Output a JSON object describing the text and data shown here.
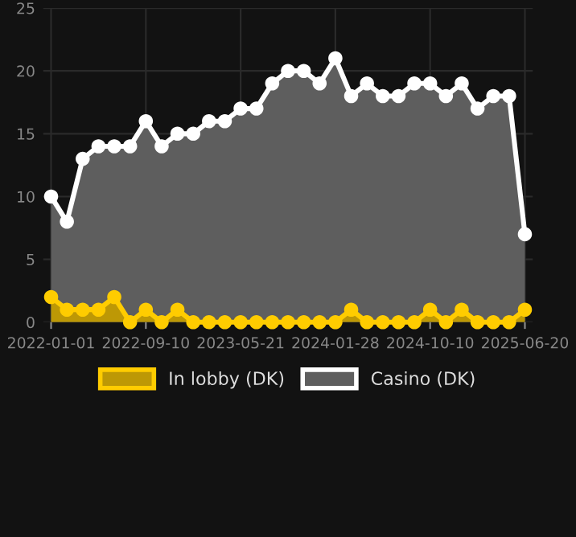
{
  "chart_data": {
    "type": "area",
    "categories": [
      "2022-01-01",
      null,
      null,
      null,
      null,
      null,
      "2022-09-10",
      null,
      null,
      null,
      null,
      null,
      "2023-05-21",
      null,
      null,
      null,
      null,
      null,
      "2024-01-28",
      null,
      null,
      null,
      null,
      null,
      "2024-10-10",
      null,
      null,
      null,
      null,
      null,
      "2025-06-20"
    ],
    "series": [
      {
        "name": "In lobby (DK)",
        "color": "#ffcc00",
        "values": [
          2,
          1,
          1,
          1,
          2,
          0,
          1,
          0,
          1,
          0,
          0,
          0,
          0,
          0,
          0,
          0,
          0,
          0,
          0,
          1,
          0,
          0,
          0,
          0,
          1,
          0,
          1,
          0,
          0,
          0,
          1
        ]
      },
      {
        "name": "Casino (DK)",
        "color": "#ffffff",
        "values": [
          10,
          8,
          13,
          14,
          14,
          14,
          16,
          14,
          15,
          15,
          16,
          16,
          17,
          17,
          19,
          20,
          20,
          19,
          21,
          18,
          19,
          18,
          18,
          19,
          19,
          18,
          19,
          17,
          18,
          18,
          7
        ]
      }
    ],
    "ylim": [
      0,
      25
    ],
    "yticks": [
      0,
      5,
      10,
      15,
      20,
      25
    ],
    "grid": true,
    "legend": "bottom",
    "marker": "circle",
    "line_style": "solid"
  }
}
